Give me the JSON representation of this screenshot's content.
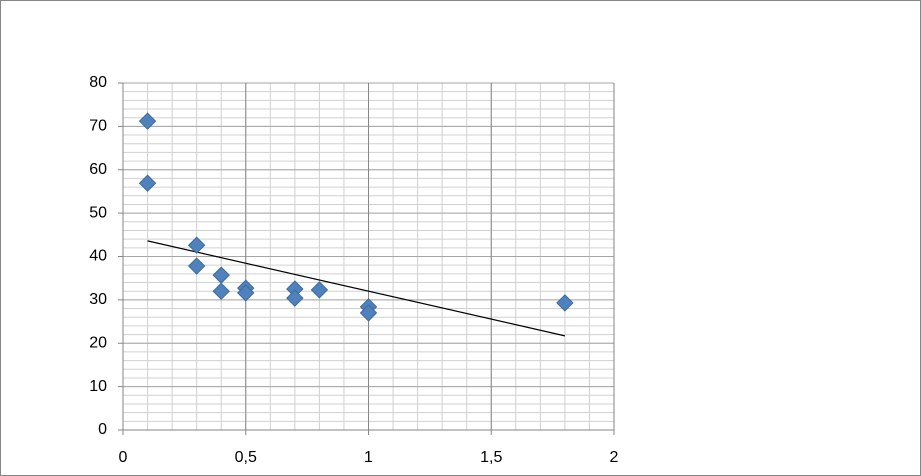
{
  "chart_data": {
    "type": "scatter",
    "series": [
      {
        "color": "#4f81bd",
        "x": [
          0.1,
          0.1,
          0.3,
          0.3,
          0.4,
          0.4,
          0.5,
          0.5,
          0.7,
          0.7,
          0.8,
          1.0,
          1.0,
          1.8
        ],
        "values": [
          71.2,
          56.9,
          42.6,
          37.8,
          35.7,
          32.0,
          32.7,
          31.6,
          32.5,
          30.4,
          32.3,
          28.4,
          27.0,
          29.3
        ]
      }
    ],
    "trendline": {
      "x": [
        0.1,
        1.8
      ],
      "values": [
        43.6,
        21.7
      ],
      "color": "#000000"
    },
    "xlim": [
      0,
      2
    ],
    "xticks": [
      0,
      {
        "value": 0.5,
        "label": "0,5"
      },
      1,
      {
        "value": 1.5,
        "label": "1,5"
      },
      2
    ],
    "ylim": [
      0,
      80
    ],
    "yticks": [
      0,
      10,
      20,
      30,
      40,
      50,
      60,
      70,
      80
    ],
    "grid": true,
    "minor_grid": {
      "x_step": 0.1,
      "y_step": 2
    }
  }
}
